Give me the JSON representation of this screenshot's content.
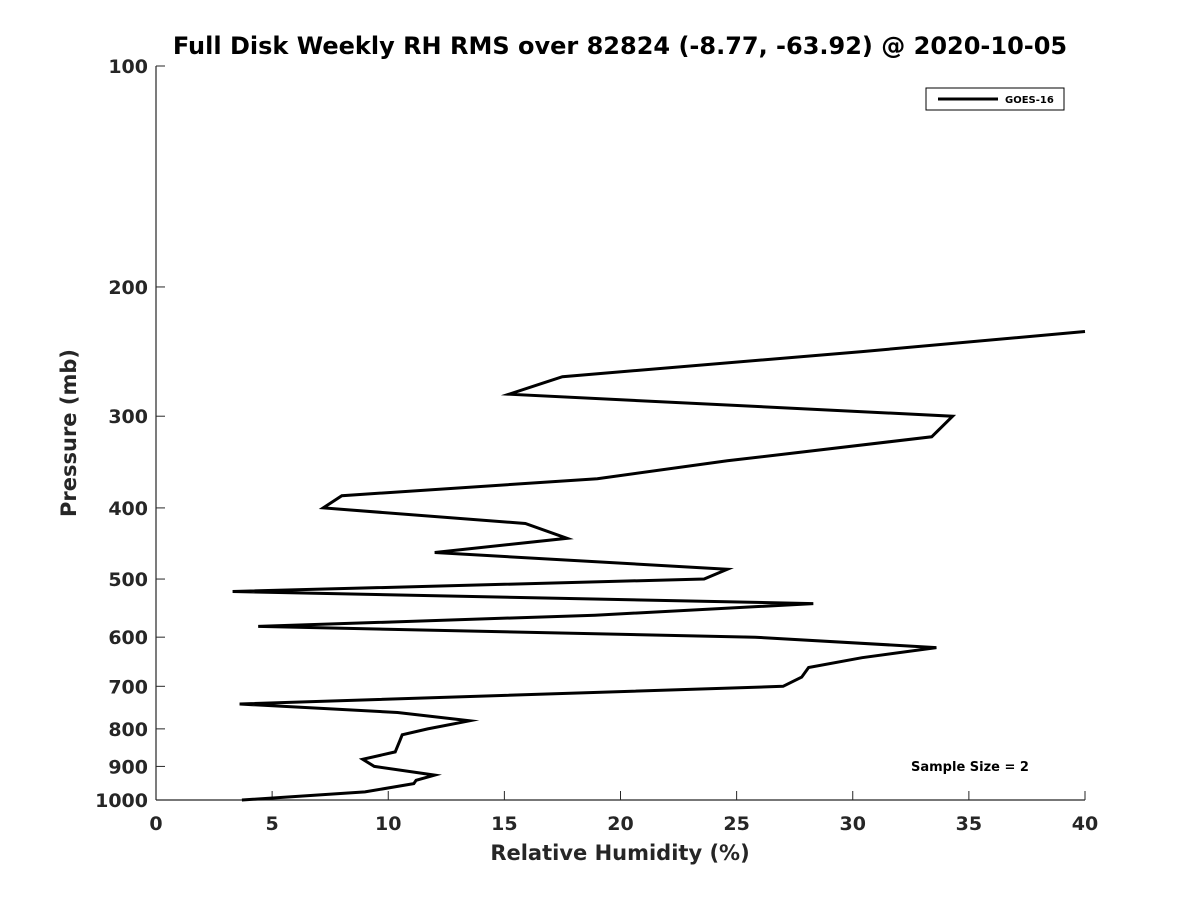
{
  "chart_data": {
    "type": "line",
    "title": "Full Disk Weekly RH RMS over 82824 (-8.77, -63.92) @ 2020-10-05",
    "xlabel": "Relative Humidity (%)",
    "ylabel": "Pressure (mb)",
    "xlim": [
      0,
      40
    ],
    "ylim": [
      100,
      1000
    ],
    "yscale": "log",
    "y_reversed": true,
    "grid": false,
    "legend_position": "top-right",
    "x_ticks": [
      "0",
      "5",
      "10",
      "15",
      "20",
      "25",
      "30",
      "35",
      "40"
    ],
    "y_ticks": [
      "100",
      "200",
      "300",
      "400",
      "500",
      "600",
      "700",
      "800",
      "900",
      "1000"
    ],
    "series": [
      {
        "name": "GOES-16",
        "color": "#000000",
        "points": [
          {
            "x": 40.0,
            "y": 230
          },
          {
            "x": 30.4,
            "y": 245
          },
          {
            "x": 17.5,
            "y": 265
          },
          {
            "x": 15.2,
            "y": 280
          },
          {
            "x": 34.3,
            "y": 300
          },
          {
            "x": 33.4,
            "y": 320
          },
          {
            "x": 24.6,
            "y": 345
          },
          {
            "x": 19.0,
            "y": 365
          },
          {
            "x": 8.0,
            "y": 385
          },
          {
            "x": 7.2,
            "y": 400
          },
          {
            "x": 15.9,
            "y": 420
          },
          {
            "x": 17.7,
            "y": 440
          },
          {
            "x": 12.0,
            "y": 460
          },
          {
            "x": 24.6,
            "y": 485
          },
          {
            "x": 23.6,
            "y": 500
          },
          {
            "x": 3.3,
            "y": 520
          },
          {
            "x": 28.3,
            "y": 540
          },
          {
            "x": 18.9,
            "y": 560
          },
          {
            "x": 4.4,
            "y": 580
          },
          {
            "x": 25.8,
            "y": 600
          },
          {
            "x": 33.6,
            "y": 620
          },
          {
            "x": 30.4,
            "y": 640
          },
          {
            "x": 28.1,
            "y": 660
          },
          {
            "x": 27.8,
            "y": 680
          },
          {
            "x": 27.0,
            "y": 700
          },
          {
            "x": 3.6,
            "y": 740
          },
          {
            "x": 10.4,
            "y": 760
          },
          {
            "x": 13.5,
            "y": 780
          },
          {
            "x": 11.7,
            "y": 800
          },
          {
            "x": 10.6,
            "y": 815
          },
          {
            "x": 10.5,
            "y": 830
          },
          {
            "x": 10.3,
            "y": 860
          },
          {
            "x": 8.9,
            "y": 880
          },
          {
            "x": 9.4,
            "y": 900
          },
          {
            "x": 12.0,
            "y": 925
          },
          {
            "x": 11.2,
            "y": 940
          },
          {
            "x": 11.1,
            "y": 950
          },
          {
            "x": 9.0,
            "y": 975
          },
          {
            "x": 3.7,
            "y": 1000
          }
        ]
      }
    ],
    "annotation": "Sample Size = 2"
  }
}
